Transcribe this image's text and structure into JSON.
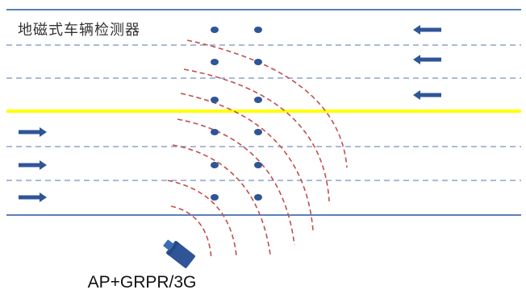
{
  "labels": {
    "detector": "地磁式车辆检测器",
    "access_point": "AP+GRPR/3G"
  },
  "colors": {
    "road_edge": "#5b7fb5",
    "lane_divider": "#8fa3c9",
    "center_line": "#ffff00",
    "sensor": "#2f5597",
    "arrow": "#2f5597",
    "signal_wave": "#c0504d",
    "access_point": "#2f5597"
  },
  "icons": {
    "access_point": "access-point-icon",
    "sensor": "sensor-dot-icon",
    "direction": "arrow-icon"
  },
  "sensor_rows": 6,
  "traffic": {
    "upper_lanes_direction": "left",
    "lower_lanes_direction": "right"
  }
}
